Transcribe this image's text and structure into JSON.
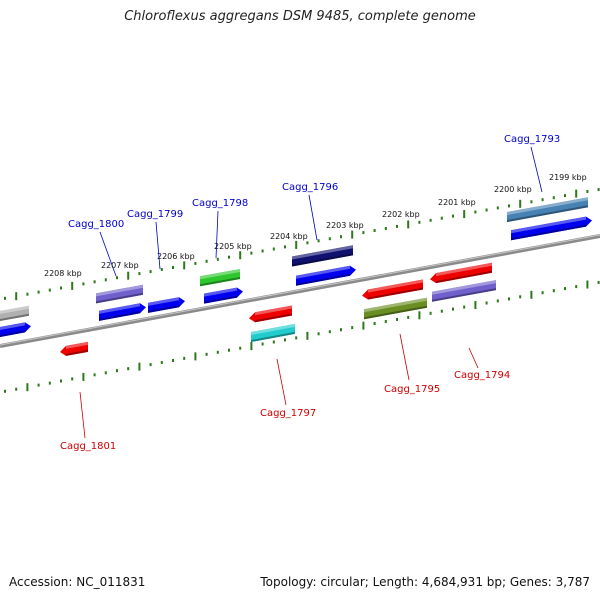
{
  "title": "Chloroflexus aggregans DSM 9485, complete genome",
  "footer": {
    "accession": "Accession: NC_011831",
    "topology": "Topology: circular; Length: 4,684,931 bp; Genes: 3,787"
  },
  "colors": {
    "forward_label": "#0000cc",
    "reverse_label": "#cc0000",
    "backbone": "#808080",
    "tick": "#2a7a1a"
  },
  "kbp_labels": [
    "2199 kbp",
    "2200 kbp",
    "2201 kbp",
    "2202 kbp",
    "2203 kbp",
    "2204 kbp",
    "2205 kbp",
    "2206 kbp",
    "2207 kbp",
    "2208 kbp"
  ],
  "gene_labels": [
    {
      "text": "Cagg_1793",
      "strand": "forward"
    },
    {
      "text": "Cagg_1794",
      "strand": "reverse"
    },
    {
      "text": "Cagg_1795",
      "strand": "reverse"
    },
    {
      "text": "Cagg_1796",
      "strand": "forward"
    },
    {
      "text": "Cagg_1797",
      "strand": "reverse"
    },
    {
      "text": "Cagg_1798",
      "strand": "forward"
    },
    {
      "text": "Cagg_1799",
      "strand": "forward"
    },
    {
      "text": "Cagg_1800",
      "strand": "forward"
    },
    {
      "text": "Cagg_1801",
      "strand": "reverse"
    }
  ]
}
